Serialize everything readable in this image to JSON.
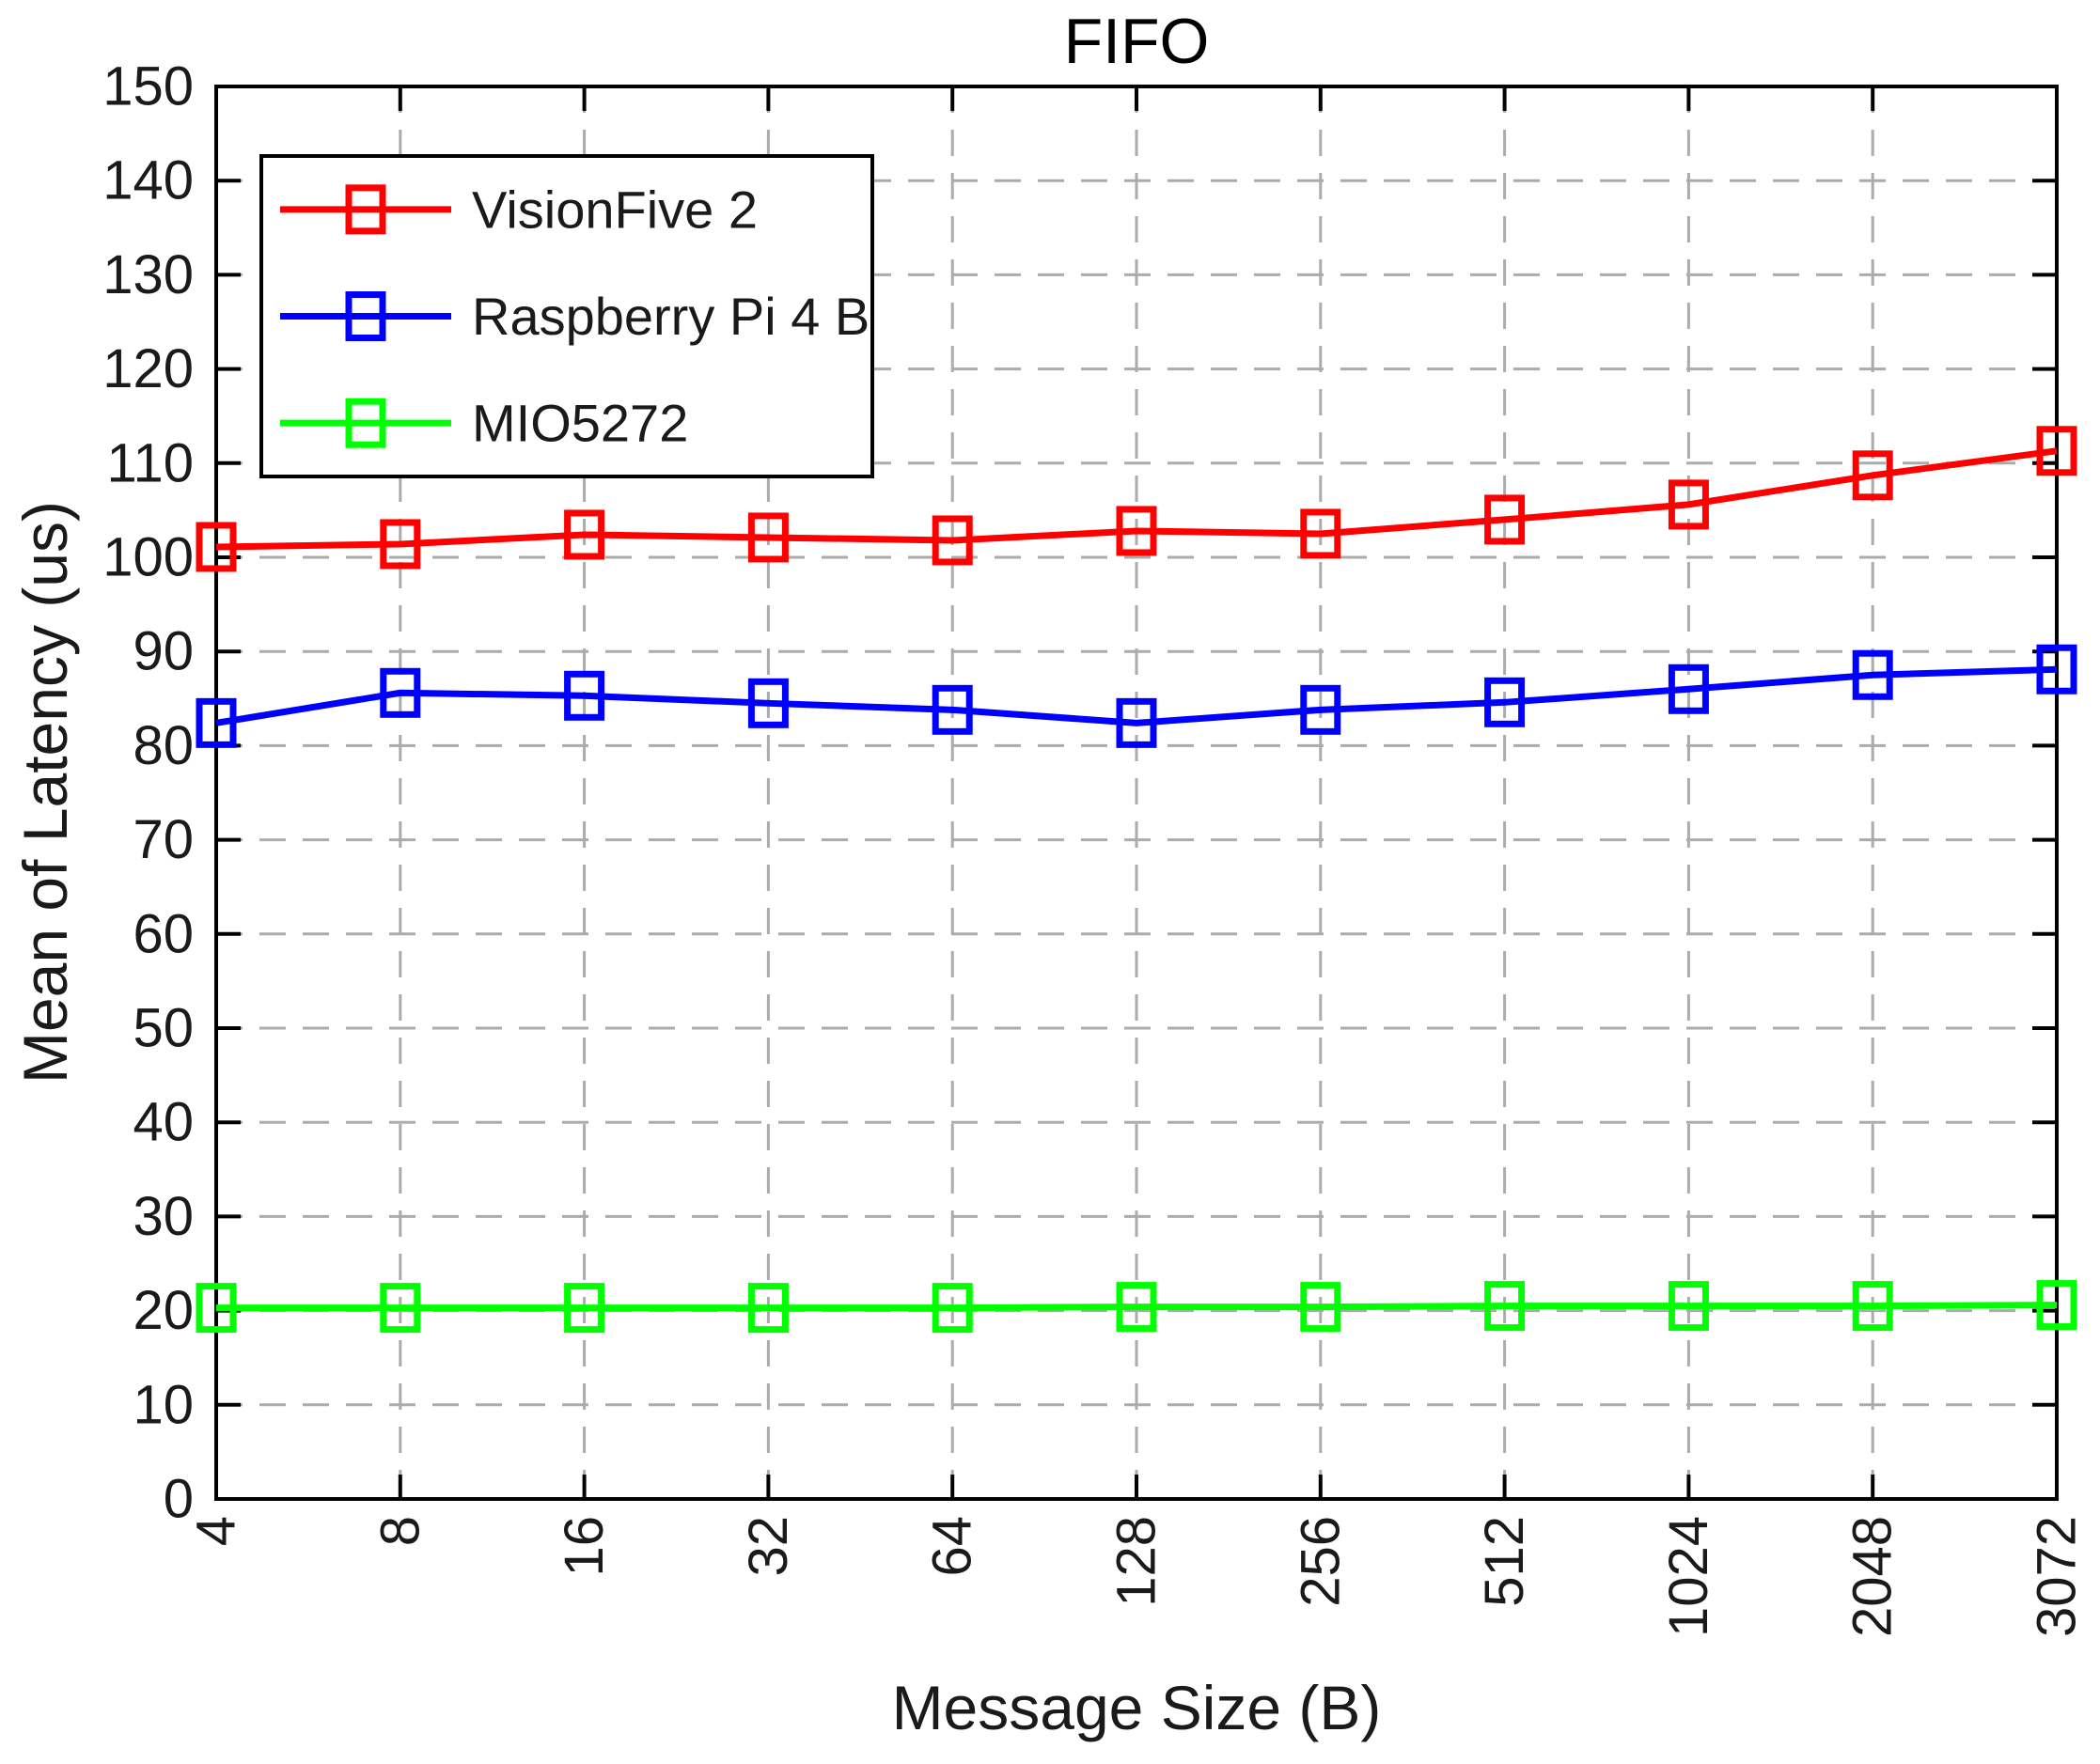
{
  "chart_data": {
    "type": "line",
    "title": "FIFO",
    "xlabel": "Message Size (B)",
    "ylabel": "Mean of Latency (us)",
    "categories": [
      "4",
      "8",
      "16",
      "32",
      "64",
      "128",
      "256",
      "512",
      "1024",
      "2048",
      "3072"
    ],
    "ylim": [
      0,
      150
    ],
    "ytick_step": 10,
    "grid": "dashed",
    "grid_color": "#ababab",
    "axis_color": "#000000",
    "tick_direction": "in",
    "marker": "square-hollow",
    "legend_position": "top-left",
    "series": [
      {
        "name": "VisionFive 2",
        "color": "#ff0000",
        "values": [
          101.1,
          101.4,
          102.4,
          102.1,
          101.8,
          102.8,
          102.5,
          104.0,
          105.6,
          108.7,
          111.3
        ]
      },
      {
        "name": "Raspberry Pi 4 B",
        "color": "#0000ff",
        "values": [
          82.4,
          85.6,
          85.3,
          84.5,
          83.8,
          82.4,
          83.8,
          84.6,
          86.0,
          87.5,
          88.1
        ]
      },
      {
        "name": "MIO5272",
        "color": "#00ff00",
        "values": [
          20.3,
          20.3,
          20.3,
          20.3,
          20.3,
          20.4,
          20.4,
          20.5,
          20.5,
          20.5,
          20.6
        ]
      }
    ]
  }
}
